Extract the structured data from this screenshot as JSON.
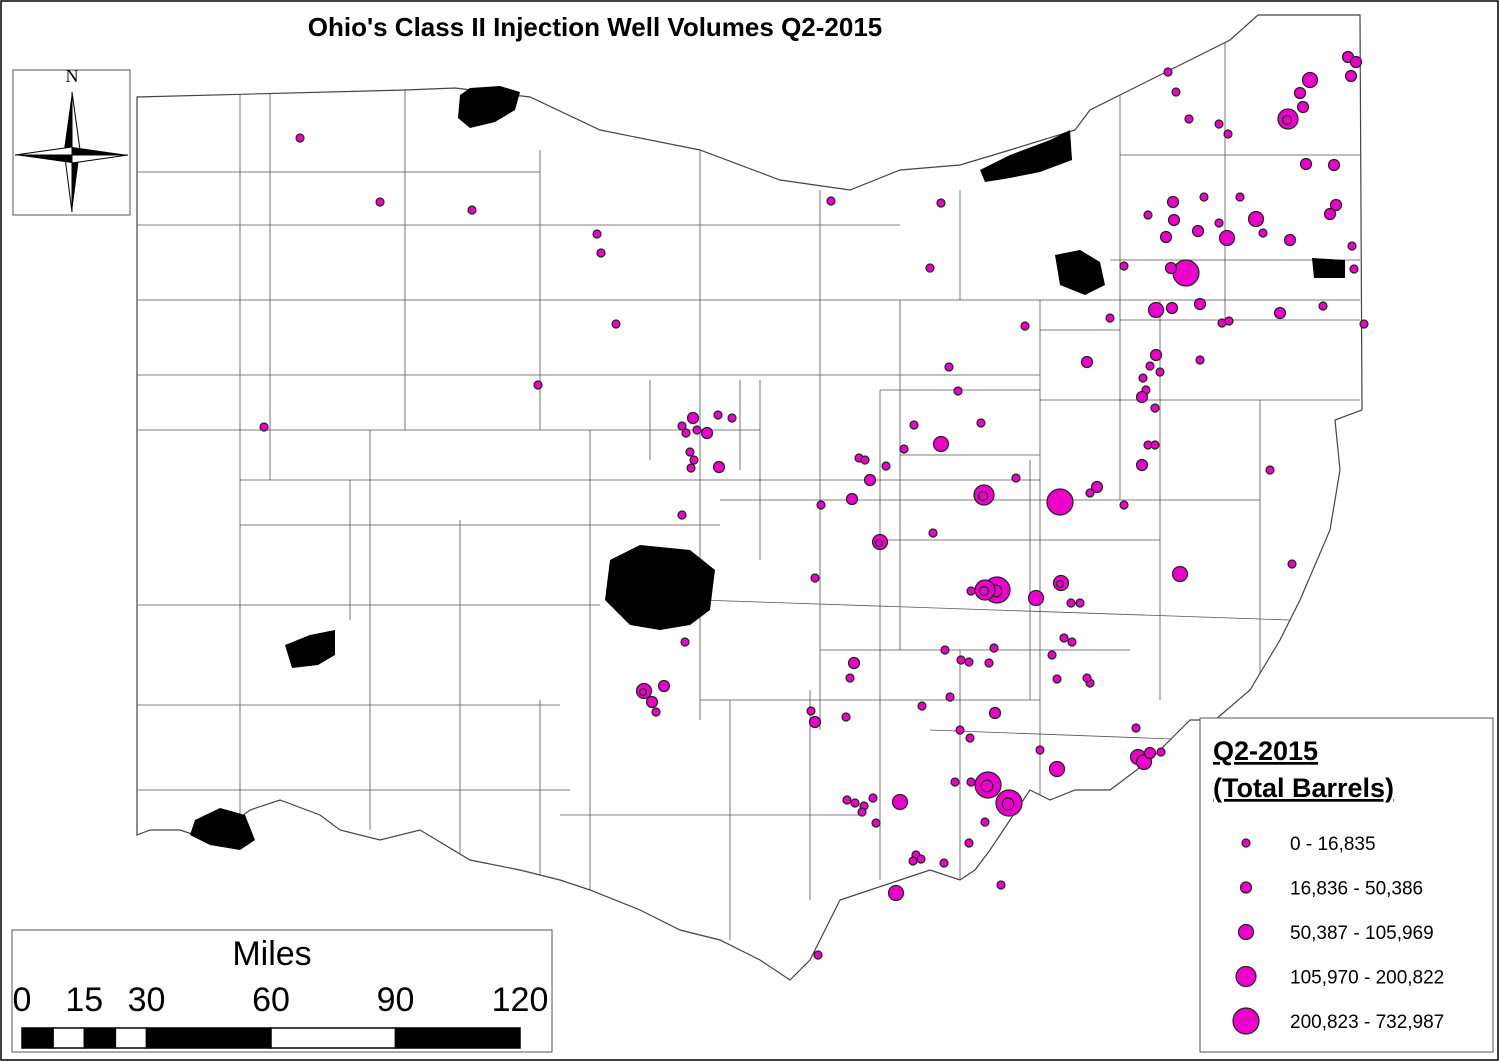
{
  "title": "Ohio's Class II Injection Well Volumes Q2-2015",
  "compass": {
    "north": "N"
  },
  "scale": {
    "label": "Miles",
    "ticks": [
      0,
      15,
      30,
      60,
      90,
      120
    ]
  },
  "legend": {
    "title": "Q2-2015",
    "subtitle": "(Total Barrels)",
    "entries": [
      "0 - 16,835",
      "16,836 - 50,386",
      "50,387 - 105,969",
      "105,970 - 200,822",
      "200,823 - 732,987"
    ]
  }
}
